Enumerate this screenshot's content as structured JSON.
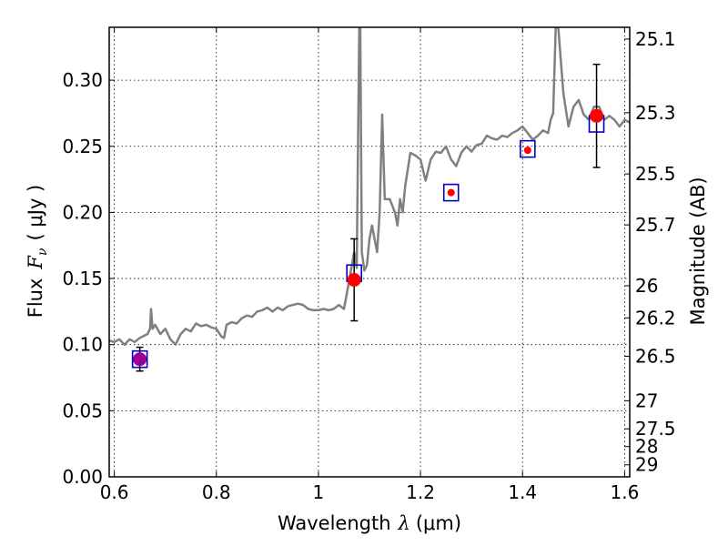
{
  "chart_data": {
    "type": "line",
    "title": "",
    "xlabel_text": "Wavelength",
    "xlabel_symbol": "λ",
    "xlabel_unit": "(μm)",
    "ylabel_text": "Flux",
    "ylabel_symbol": "F",
    "ylabel_subscript": "ν",
    "ylabel_unit": "( μJy )",
    "y2label": "Magnitude (AB)",
    "xlim": [
      0.59,
      1.61
    ],
    "ylim": [
      0.0,
      0.34
    ],
    "x_ticks": [
      0.6,
      0.8,
      1.0,
      1.2,
      1.4,
      1.6
    ],
    "x_tick_labels": [
      "0.6",
      "0.8",
      "1",
      "1.2",
      "1.4",
      "1.6"
    ],
    "y_ticks": [
      0.0,
      0.05,
      0.1,
      0.15,
      0.2,
      0.25,
      0.3
    ],
    "y_tick_labels": [
      "0.00",
      "0.05",
      "0.10",
      "0.15",
      "0.20",
      "0.25",
      "0.30"
    ],
    "y2_ticks": [
      25.1,
      25.3,
      25.5,
      25.7,
      26,
      26.2,
      26.5,
      27,
      27.5,
      28,
      29
    ],
    "y2_tick_labels": [
      "25.1",
      "25.3",
      "25.5",
      "25.7",
      "26",
      "26.2",
      "26.5",
      "27",
      "27.5",
      "28",
      "29"
    ],
    "grid": true,
    "colors": {
      "spectrum": "#808080",
      "model_box": "#0000cc",
      "red_point": "#ff0000",
      "purple_point": "#990099",
      "errorbar": "#000000"
    },
    "series": [
      {
        "kind": "spectrum",
        "x": [
          0.59,
          0.6,
          0.61,
          0.62,
          0.63,
          0.64,
          0.65,
          0.66,
          0.665,
          0.67,
          0.672,
          0.675,
          0.68,
          0.69,
          0.7,
          0.71,
          0.72,
          0.73,
          0.74,
          0.75,
          0.76,
          0.77,
          0.78,
          0.79,
          0.8,
          0.81,
          0.815,
          0.82,
          0.83,
          0.84,
          0.85,
          0.86,
          0.87,
          0.88,
          0.89,
          0.9,
          0.91,
          0.92,
          0.93,
          0.94,
          0.95,
          0.96,
          0.97,
          0.98,
          0.99,
          1.0,
          1.01,
          1.02,
          1.03,
          1.04,
          1.05,
          1.06,
          1.07,
          1.075,
          1.08,
          1.082,
          1.085,
          1.09,
          1.095,
          1.1,
          1.105,
          1.11,
          1.115,
          1.12,
          1.125,
          1.13,
          1.14,
          1.15,
          1.155,
          1.16,
          1.165,
          1.17,
          1.18,
          1.19,
          1.2,
          1.21,
          1.22,
          1.23,
          1.24,
          1.25,
          1.26,
          1.27,
          1.28,
          1.29,
          1.3,
          1.31,
          1.32,
          1.33,
          1.34,
          1.35,
          1.36,
          1.37,
          1.38,
          1.39,
          1.4,
          1.41,
          1.42,
          1.43,
          1.44,
          1.45,
          1.455,
          1.46,
          1.465,
          1.47,
          1.48,
          1.49,
          1.5,
          1.51,
          1.52,
          1.53,
          1.54,
          1.55,
          1.56,
          1.57,
          1.58,
          1.59,
          1.6,
          1.61
        ],
        "y": [
          0.103,
          0.102,
          0.104,
          0.1,
          0.104,
          0.102,
          0.105,
          0.107,
          0.108,
          0.112,
          0.127,
          0.112,
          0.115,
          0.108,
          0.112,
          0.104,
          0.1,
          0.108,
          0.112,
          0.11,
          0.116,
          0.114,
          0.115,
          0.113,
          0.112,
          0.106,
          0.105,
          0.115,
          0.117,
          0.116,
          0.12,
          0.122,
          0.121,
          0.125,
          0.126,
          0.128,
          0.125,
          0.128,
          0.126,
          0.129,
          0.13,
          0.131,
          0.13,
          0.127,
          0.126,
          0.126,
          0.127,
          0.126,
          0.127,
          0.13,
          0.127,
          0.148,
          0.17,
          0.158,
          0.34,
          0.34,
          0.17,
          0.156,
          0.16,
          0.18,
          0.19,
          0.18,
          0.17,
          0.2,
          0.274,
          0.21,
          0.21,
          0.2,
          0.19,
          0.21,
          0.2,
          0.22,
          0.245,
          0.243,
          0.24,
          0.224,
          0.24,
          0.246,
          0.245,
          0.25,
          0.24,
          0.235,
          0.245,
          0.25,
          0.246,
          0.251,
          0.252,
          0.258,
          0.256,
          0.255,
          0.258,
          0.257,
          0.26,
          0.262,
          0.265,
          0.26,
          0.255,
          0.258,
          0.262,
          0.26,
          0.27,
          0.275,
          0.34,
          0.34,
          0.29,
          0.265,
          0.28,
          0.285,
          0.274,
          0.27,
          0.28,
          0.28,
          0.27,
          0.273,
          0.27,
          0.265,
          0.27,
          0.268
        ]
      },
      {
        "kind": "model_boxes",
        "x": [
          0.65,
          1.07,
          1.26,
          1.41,
          1.545
        ],
        "y": [
          0.089,
          0.154,
          0.215,
          0.248,
          0.267
        ]
      },
      {
        "kind": "observed",
        "points": [
          {
            "x": 0.65,
            "y": 0.089,
            "err": 0.009,
            "color": "purple"
          },
          {
            "x": 1.07,
            "y": 0.149,
            "err": 0.031,
            "color": "red"
          },
          {
            "x": 1.26,
            "y": 0.215,
            "err": 0.0,
            "color": "red"
          },
          {
            "x": 1.41,
            "y": 0.247,
            "err": 0.0,
            "color": "red"
          },
          {
            "x": 1.545,
            "y": 0.273,
            "err": 0.039,
            "color": "red"
          }
        ]
      }
    ]
  }
}
